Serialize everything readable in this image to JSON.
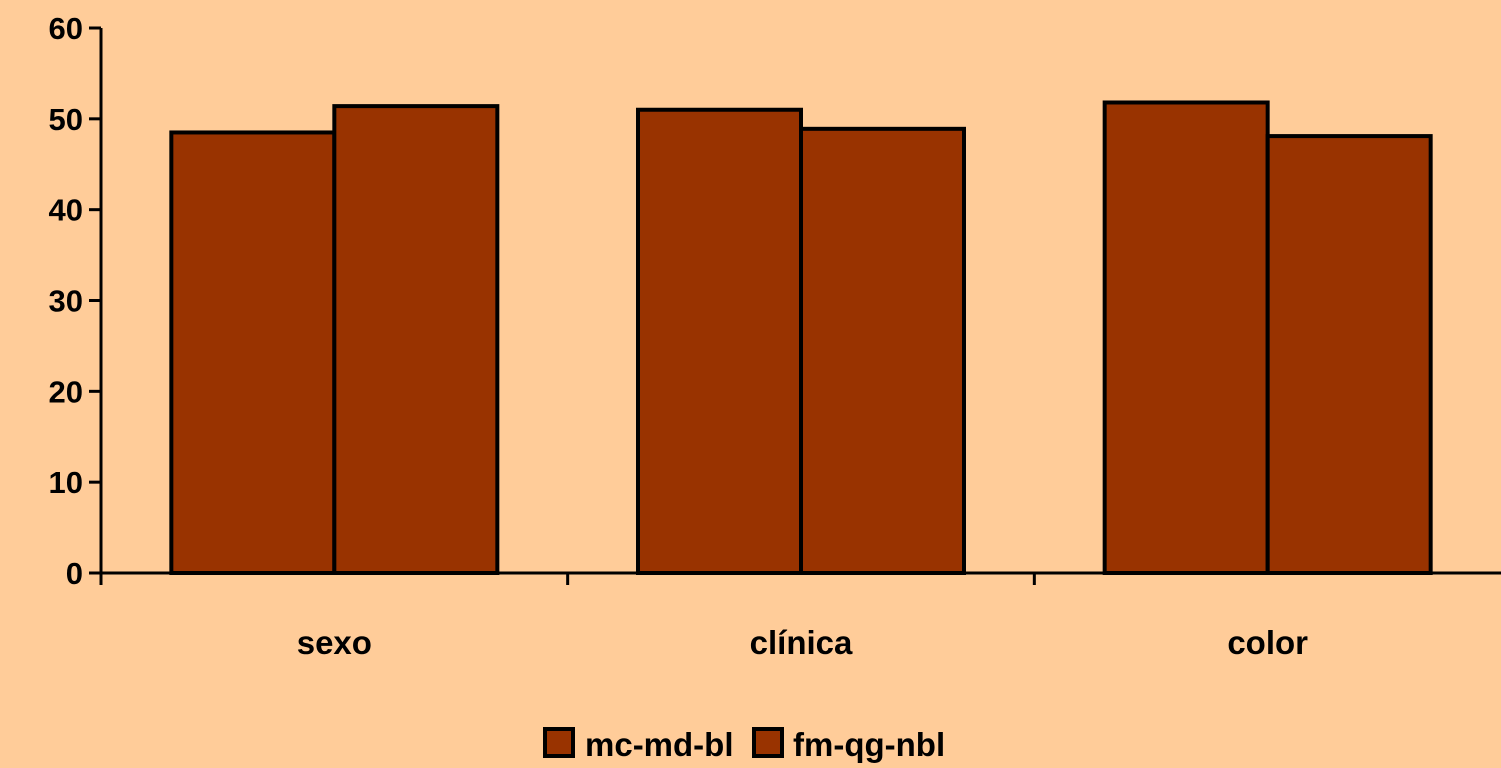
{
  "chart_data": {
    "type": "bar",
    "title": "",
    "xlabel": "",
    "ylabel": "",
    "categories": [
      "sexo",
      "clínica",
      "color"
    ],
    "series": [
      {
        "name": "mc-md-bl",
        "values": [
          48.5,
          51.0,
          51.8
        ],
        "color": "#993300"
      },
      {
        "name": "fm-qg-nbl",
        "values": [
          51.4,
          48.9,
          48.1
        ],
        "color": "#993300"
      }
    ],
    "ylim": [
      0,
      60
    ],
    "yticks": [
      0,
      10,
      20,
      30,
      40,
      50,
      60
    ],
    "grid": false,
    "legend": "bottom",
    "background": "#FFCC99",
    "bar_outline": "#000000"
  }
}
